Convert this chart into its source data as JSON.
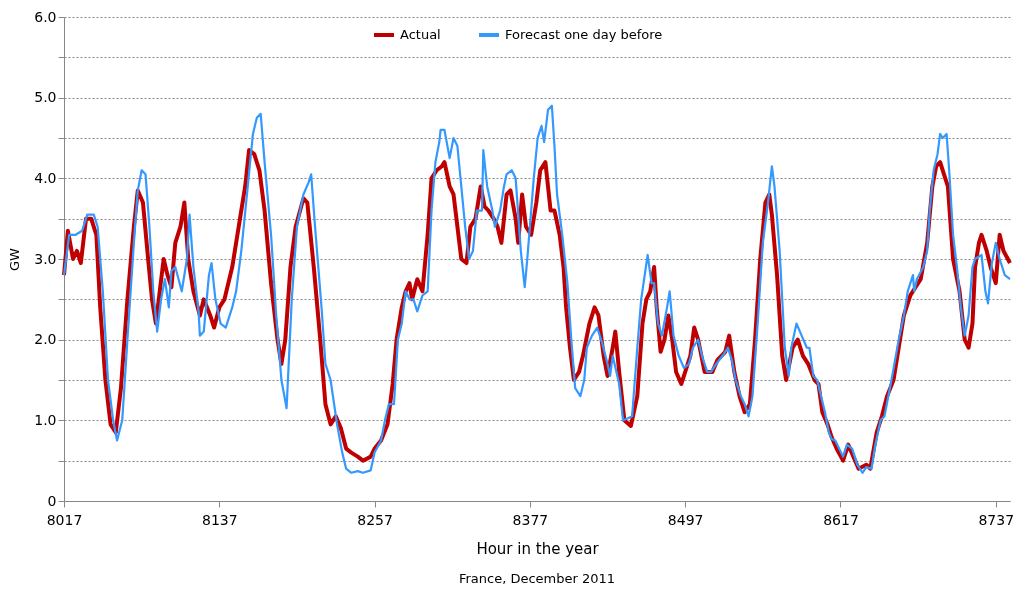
{
  "chart_data": {
    "type": "line",
    "xlabel": "Hour in the year",
    "ylabel": "GW",
    "annotations": [
      "France, December 2011"
    ],
    "xlim": [
      8017,
      8748
    ],
    "xticks": [
      8017,
      8137,
      8257,
      8377,
      8497,
      8617,
      8737
    ],
    "ylim": [
      0,
      6
    ],
    "yticks": [
      0,
      {
        "value": 0.5,
        "label": null
      },
      {
        "value": 1,
        "label": "1.0"
      },
      {
        "value": 1.5,
        "label": null
      },
      {
        "value": 2,
        "label": "2.0"
      },
      {
        "value": 2.5,
        "label": null
      },
      {
        "value": 3,
        "label": "3.0"
      },
      {
        "value": 3.5,
        "label": null
      },
      {
        "value": 4,
        "label": "4.0"
      },
      {
        "value": 4.5,
        "label": null
      },
      {
        "value": 5,
        "label": "5.0"
      },
      {
        "value": 5.5,
        "label": null
      },
      {
        "value": 6,
        "label": "6.0"
      }
    ],
    "grid": "y",
    "legend": "top",
    "marker": "none",
    "line_style": "solid",
    "series": [
      {
        "name": "Actual",
        "color": "#c00000",
        "x": [
          8017,
          8020,
          8024,
          8027,
          8030,
          8034,
          8038,
          8042,
          8045,
          8049,
          8053,
          8057,
          8061,
          8066,
          8071,
          8074,
          8078,
          8082,
          8085,
          8088,
          8091,
          8094,
          8097,
          8100,
          8103,
          8107,
          8110,
          8113,
          8117,
          8122,
          8125,
          8130,
          8133,
          8137,
          8141,
          8147,
          8153,
          8157,
          8160,
          8164,
          8168,
          8172,
          8177,
          8182,
          8185,
          8188,
          8192,
          8196,
          8202,
          8205,
          8210,
          8215,
          8219,
          8223,
          8227,
          8231,
          8235,
          8239,
          8244,
          8248,
          8254,
          8257,
          8262,
          8267,
          8271,
          8274,
          8278,
          8281,
          8284,
          8286,
          8290,
          8294,
          8298,
          8301,
          8305,
          8309,
          8311,
          8315,
          8318,
          8321,
          8324,
          8328,
          8331,
          8335,
          8339,
          8342,
          8345,
          8349,
          8352,
          8355,
          8359,
          8362,
          8366,
          8368,
          8371,
          8374,
          8378,
          8382,
          8385,
          8389,
          8393,
          8396,
          8400,
          8403,
          8405,
          8408,
          8411,
          8415,
          8418,
          8423,
          8427,
          8430,
          8434,
          8437,
          8441,
          8443,
          8446,
          8450,
          8455,
          8460,
          8464,
          8467,
          8470,
          8473,
          8475,
          8478,
          8481,
          8484,
          8487,
          8490,
          8494,
          8498,
          8501,
          8504,
          8507,
          8512,
          8518,
          8522,
          8528,
          8531,
          8535,
          8539,
          8543,
          8547,
          8551,
          8555,
          8559,
          8562,
          8564,
          8568,
          8572,
          8575,
          8580,
          8584,
          8588,
          8592,
          8597,
          8600,
          8603,
          8607,
          8610,
          8614,
          8619,
          8623,
          8627,
          8631,
          8637,
          8640,
          8645,
          8649,
          8653,
          8658,
          8662,
          8666,
          8671,
          8675,
          8679,
          8684,
          8688,
          8691,
          8694,
          8697,
          8700,
          8704,
          8709,
          8713,
          8716,
          8719,
          8721,
          8724,
          8726,
          8730,
          8733,
          8737,
          8740,
          8743,
          8748
        ],
        "values": [
          2.8,
          3.35,
          3.0,
          3.1,
          2.95,
          3.5,
          3.5,
          3.3,
          2.4,
          1.5,
          0.95,
          0.85,
          1.4,
          2.5,
          3.4,
          3.85,
          3.7,
          3.0,
          2.5,
          2.2,
          2.6,
          3.0,
          2.8,
          2.65,
          3.2,
          3.4,
          3.7,
          3.0,
          2.6,
          2.3,
          2.5,
          2.3,
          2.15,
          2.4,
          2.5,
          2.9,
          3.5,
          3.9,
          4.35,
          4.3,
          4.1,
          3.6,
          2.7,
          2.0,
          1.7,
          2.0,
          2.9,
          3.4,
          3.75,
          3.7,
          2.9,
          2.0,
          1.2,
          0.95,
          1.05,
          0.9,
          0.65,
          0.6,
          0.55,
          0.5,
          0.55,
          0.65,
          0.75,
          0.95,
          1.45,
          2.0,
          2.4,
          2.6,
          2.7,
          2.5,
          2.75,
          2.6,
          3.3,
          4.0,
          4.1,
          4.15,
          4.2,
          3.9,
          3.8,
          3.4,
          3.0,
          2.95,
          3.4,
          3.5,
          3.9,
          3.65,
          3.6,
          3.5,
          3.4,
          3.2,
          3.8,
          3.85,
          3.5,
          3.2,
          3.8,
          3.4,
          3.3,
          3.7,
          4.1,
          4.2,
          3.6,
          3.6,
          3.3,
          2.9,
          2.4,
          1.9,
          1.5,
          1.6,
          1.8,
          2.2,
          2.4,
          2.3,
          1.8,
          1.55,
          1.9,
          2.1,
          1.6,
          1.0,
          0.93,
          1.3,
          2.2,
          2.5,
          2.6,
          2.9,
          2.4,
          1.85,
          2.0,
          2.3,
          2.0,
          1.6,
          1.45,
          1.65,
          1.8,
          2.15,
          2.0,
          1.6,
          1.6,
          1.75,
          1.85,
          2.05,
          1.6,
          1.3,
          1.1,
          1.2,
          2.0,
          3.0,
          3.7,
          3.8,
          3.55,
          2.8,
          1.8,
          1.5,
          1.9,
          2.0,
          1.8,
          1.7,
          1.5,
          1.45,
          1.1,
          0.95,
          0.8,
          0.65,
          0.5,
          0.7,
          0.55,
          0.4,
          0.45,
          0.4,
          0.85,
          1.05,
          1.3,
          1.5,
          1.9,
          2.3,
          2.55,
          2.65,
          2.75,
          3.2,
          3.9,
          4.15,
          4.2,
          4.05,
          3.9,
          3.0,
          2.6,
          2.0,
          1.9,
          2.2,
          2.9,
          3.2,
          3.3,
          3.1,
          2.9,
          2.7,
          3.3,
          3.1,
          2.95
        ]
      },
      {
        "name": "Forecast one day before",
        "color": "#3399ff",
        "x": [
          8017,
          8021,
          8026,
          8031,
          8035,
          8040,
          8043,
          8047,
          8051,
          8055,
          8058,
          8062,
          8066,
          8071,
          8074,
          8077,
          8080,
          8083,
          8086,
          8089,
          8092,
          8095,
          8098,
          8100,
          8103,
          8108,
          8112,
          8114,
          8117,
          8121,
          8122,
          8125,
          8129,
          8131,
          8134,
          8138,
          8142,
          8147,
          8150,
          8154,
          8159,
          8163,
          8166,
          8169,
          8172,
          8177,
          8181,
          8185,
          8189,
          8193,
          8197,
          8202,
          8206,
          8208,
          8211,
          8216,
          8219,
          8223,
          8228,
          8232,
          8235,
          8239,
          8244,
          8248,
          8254,
          8257,
          8262,
          8265,
          8268,
          8272,
          8275,
          8278,
          8281,
          8284,
          8287,
          8290,
          8294,
          8298,
          8301,
          8304,
          8307,
          8308,
          8311,
          8315,
          8318,
          8321,
          8324,
          8327,
          8330,
          8333,
          8336,
          8340,
          8341,
          8344,
          8348,
          8350,
          8354,
          8357,
          8359,
          8363,
          8366,
          8370,
          8373,
          8375,
          8380,
          8383,
          8386,
          8388,
          8391,
          8394,
          8396,
          8398,
          8402,
          8406,
          8409,
          8412,
          8416,
          8419,
          8421,
          8425,
          8429,
          8433,
          8437,
          8439,
          8441,
          8446,
          8449,
          8452,
          8456,
          8460,
          8463,
          8468,
          8471,
          8473,
          8476,
          8479,
          8483,
          8485,
          8488,
          8492,
          8496,
          8500,
          8503,
          8507,
          8510,
          8514,
          8517,
          8521,
          8526,
          8530,
          8533,
          8536,
          8540,
          8543,
          8546,
          8549,
          8553,
          8557,
          8561,
          8564,
          8566,
          8570,
          8574,
          8577,
          8579,
          8583,
          8587,
          8591,
          8593,
          8596,
          8599,
          8605,
          8608,
          8610,
          8613,
          8619,
          8622,
          8626,
          8630,
          8634,
          8637,
          8641,
          8644,
          8648,
          8651,
          8654,
          8657,
          8662,
          8666,
          8669,
          8673,
          8674,
          8676,
          8681,
          8684,
          8686,
          8689,
          8692,
          8694,
          8696,
          8699,
          8701,
          8704,
          8707,
          8710,
          8713,
          8716,
          8719,
          8721,
          8726,
          8729,
          8731,
          8734,
          8737,
          8740,
          8744,
          8748
        ],
        "values": [
          2.8,
          3.3,
          3.3,
          3.35,
          3.55,
          3.55,
          3.4,
          2.6,
          1.5,
          1.0,
          0.75,
          1.0,
          2.0,
          3.2,
          3.85,
          4.1,
          4.05,
          3.4,
          2.6,
          2.1,
          2.5,
          2.75,
          2.4,
          2.85,
          2.9,
          2.6,
          3.0,
          3.55,
          2.9,
          2.35,
          2.05,
          2.1,
          2.8,
          2.95,
          2.5,
          2.2,
          2.15,
          2.4,
          2.6,
          3.1,
          3.9,
          4.55,
          4.75,
          4.8,
          4.2,
          3.3,
          2.3,
          1.5,
          1.15,
          2.5,
          3.4,
          3.8,
          3.95,
          4.05,
          3.4,
          2.4,
          1.7,
          1.5,
          0.95,
          0.6,
          0.4,
          0.35,
          0.37,
          0.35,
          0.38,
          0.6,
          0.75,
          1.0,
          1.2,
          1.2,
          2.0,
          2.2,
          2.6,
          2.5,
          2.5,
          2.35,
          2.55,
          2.6,
          3.6,
          4.2,
          4.45,
          4.6,
          4.6,
          4.25,
          4.5,
          4.4,
          3.9,
          3.4,
          3.0,
          3.1,
          3.6,
          3.6,
          4.35,
          3.9,
          3.6,
          3.4,
          3.6,
          3.9,
          4.05,
          4.1,
          4.0,
          3.1,
          2.65,
          3.0,
          4.0,
          4.5,
          4.65,
          4.45,
          4.85,
          4.9,
          4.4,
          3.8,
          3.3,
          2.7,
          2.0,
          1.4,
          1.3,
          1.5,
          1.9,
          2.05,
          2.15,
          1.95,
          1.7,
          1.55,
          1.8,
          1.45,
          1.0,
          1.02,
          1.05,
          1.9,
          2.5,
          3.05,
          2.7,
          2.7,
          2.2,
          2.05,
          2.4,
          2.6,
          2.05,
          1.8,
          1.65,
          1.7,
          1.9,
          2.0,
          1.8,
          1.6,
          1.6,
          1.7,
          1.8,
          1.9,
          1.75,
          1.5,
          1.3,
          1.2,
          1.05,
          1.3,
          2.2,
          3.2,
          3.7,
          4.15,
          3.9,
          3.1,
          1.9,
          1.55,
          1.9,
          2.2,
          2.05,
          1.9,
          1.9,
          1.55,
          1.5,
          1.1,
          0.85,
          0.77,
          0.75,
          0.55,
          0.7,
          0.65,
          0.45,
          0.35,
          0.42,
          0.4,
          0.7,
          1.0,
          1.05,
          1.3,
          1.55,
          2.0,
          2.3,
          2.6,
          2.8,
          2.6,
          2.75,
          2.9,
          3.1,
          3.6,
          4.1,
          4.3,
          4.55,
          4.5,
          4.55,
          4.1,
          3.3,
          2.9,
          2.4,
          2.05,
          2.3,
          2.9,
          3.0,
          3.05,
          2.6,
          2.45,
          2.95,
          3.2,
          3.0,
          2.8,
          2.75
        ]
      }
    ]
  }
}
